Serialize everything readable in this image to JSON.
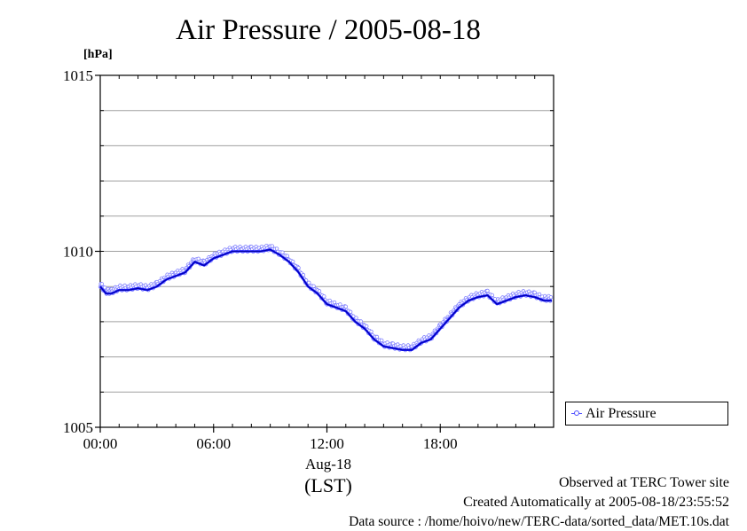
{
  "chart_data": {
    "type": "line",
    "title": "Air Pressure / 2005-08-18",
    "ylabel": "[hPa]",
    "xlabel": "(LST)",
    "x_date_label": "Aug-18",
    "ylim": [
      1005,
      1015
    ],
    "xlim_hours": [
      0,
      24
    ],
    "y_ticks": [
      "1005",
      "1010",
      "1015"
    ],
    "y_gridlines": [
      1006,
      1007,
      1008,
      1009,
      1010,
      1011,
      1012,
      1013,
      1014
    ],
    "x_ticks": [
      {
        "hour": 0,
        "label": "00:00"
      },
      {
        "hour": 6,
        "label": "06:00"
      },
      {
        "hour": 12,
        "label": "12:00"
      },
      {
        "hour": 18,
        "label": "18:00"
      }
    ],
    "legend": {
      "position": "lower-right-outside"
    },
    "series": [
      {
        "name": "Air Pressure",
        "color": "#5050ff",
        "points": [
          [
            0.0,
            1009.0
          ],
          [
            0.3,
            1008.8
          ],
          [
            0.6,
            1008.8
          ],
          [
            1.0,
            1008.9
          ],
          [
            1.5,
            1008.9
          ],
          [
            2.0,
            1008.95
          ],
          [
            2.5,
            1008.9
          ],
          [
            3.0,
            1009.0
          ],
          [
            3.5,
            1009.2
          ],
          [
            4.0,
            1009.3
          ],
          [
            4.5,
            1009.4
          ],
          [
            5.0,
            1009.7
          ],
          [
            5.5,
            1009.6
          ],
          [
            6.0,
            1009.8
          ],
          [
            6.5,
            1009.9
          ],
          [
            7.0,
            1010.0
          ],
          [
            7.5,
            1010.0
          ],
          [
            8.0,
            1010.0
          ],
          [
            8.5,
            1010.0
          ],
          [
            9.0,
            1010.05
          ],
          [
            9.5,
            1009.9
          ],
          [
            10.0,
            1009.7
          ],
          [
            10.5,
            1009.4
          ],
          [
            11.0,
            1009.0
          ],
          [
            11.5,
            1008.8
          ],
          [
            12.0,
            1008.5
          ],
          [
            12.5,
            1008.4
          ],
          [
            13.0,
            1008.3
          ],
          [
            13.5,
            1008.0
          ],
          [
            14.0,
            1007.8
          ],
          [
            14.5,
            1007.5
          ],
          [
            15.0,
            1007.3
          ],
          [
            15.5,
            1007.25
          ],
          [
            16.0,
            1007.2
          ],
          [
            16.5,
            1007.2
          ],
          [
            17.0,
            1007.4
          ],
          [
            17.5,
            1007.5
          ],
          [
            18.0,
            1007.8
          ],
          [
            18.5,
            1008.1
          ],
          [
            19.0,
            1008.4
          ],
          [
            19.5,
            1008.6
          ],
          [
            20.0,
            1008.7
          ],
          [
            20.5,
            1008.75
          ],
          [
            21.0,
            1008.5
          ],
          [
            21.5,
            1008.6
          ],
          [
            22.0,
            1008.7
          ],
          [
            22.5,
            1008.75
          ],
          [
            23.0,
            1008.7
          ],
          [
            23.5,
            1008.6
          ],
          [
            23.9,
            1008.6
          ]
        ]
      }
    ]
  },
  "footer": {
    "observed": "Observed at TERC Tower site",
    "created": "Created Automatically at 2005-08-18/23:55:52",
    "source": "Data source : /home/hoivo/new/TERC-data/sorted_data/MET.10s.dat"
  }
}
